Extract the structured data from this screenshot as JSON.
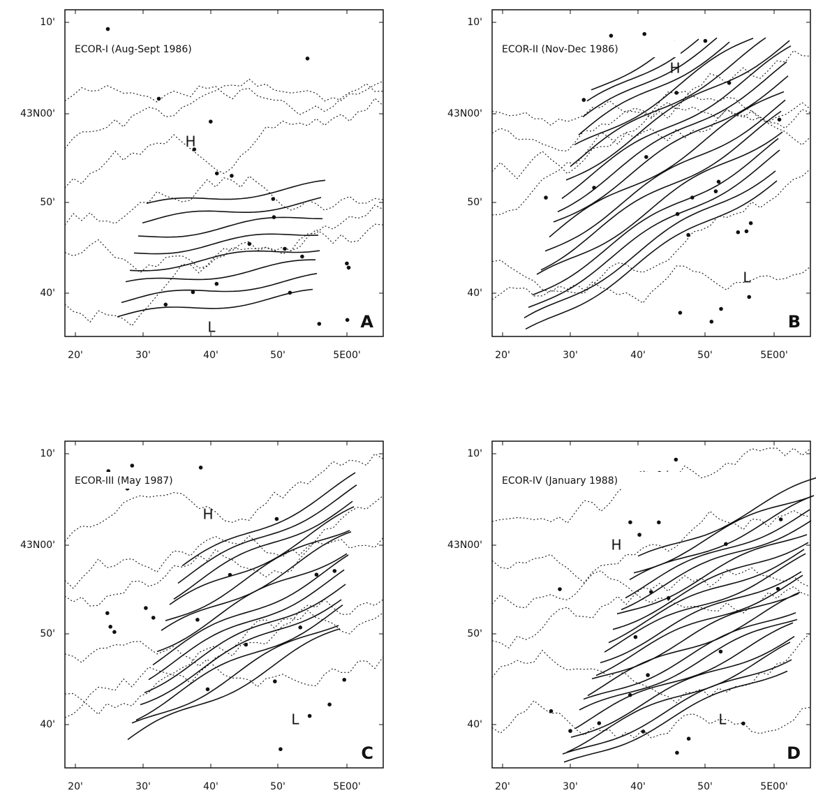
{
  "panels": [
    {
      "title": "ECOR-I (Aug-Sept 1986)",
      "letter": "A",
      "high_label": "H",
      "low_label": "L",
      "y_tick_labels": [
        "10'",
        "43N00'",
        "50'",
        "40'"
      ],
      "x_tick_labels": [
        "20'",
        "30'",
        "40'",
        "50'",
        "5E00'"
      ]
    },
    {
      "title": "ECOR-II (Nov-Dec 1986)",
      "letter": "B",
      "high_label": "H",
      "low_label": "L",
      "y_tick_labels": [
        "10'",
        "43N00'",
        "50'",
        "40'"
      ],
      "x_tick_labels": [
        "20'",
        "30'",
        "40'",
        "50'",
        "5E00'"
      ]
    },
    {
      "title": "ECOR-III (May 1987)",
      "letter": "C",
      "high_label": "H",
      "low_label": "L",
      "y_tick_labels": [
        "10'",
        "43N00'",
        "50'",
        "40'"
      ],
      "x_tick_labels": [
        "20'",
        "30'",
        "40'",
        "50'",
        "5E00'"
      ]
    },
    {
      "title": "ECOR-IV (January 1988)",
      "letter": "D",
      "high_label": "H",
      "low_label": "L",
      "y_tick_labels": [
        "10'",
        "43N00'",
        "50'",
        "40'"
      ],
      "x_tick_labels": [
        "20'",
        "30'",
        "40'",
        "50'",
        "5E00'"
      ]
    }
  ]
}
